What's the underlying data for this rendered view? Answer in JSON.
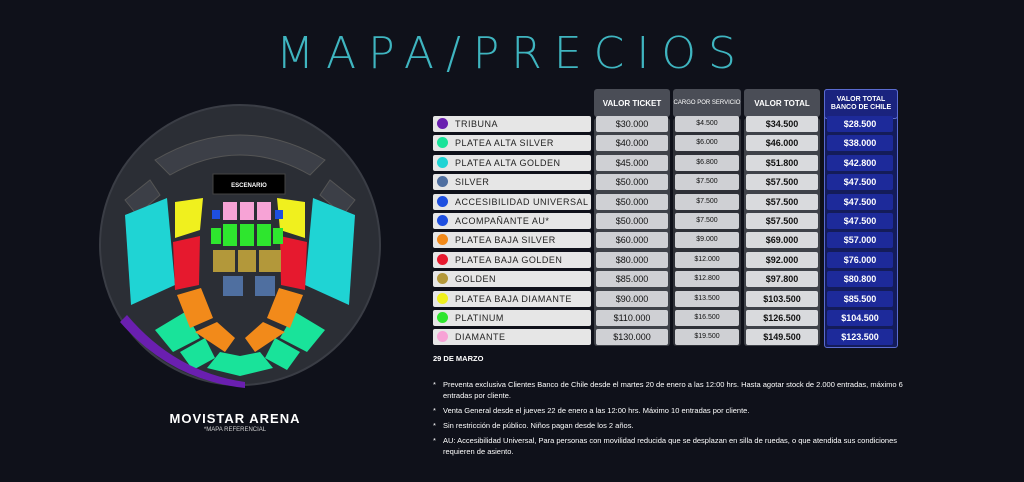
{
  "page": {
    "title": "MAPA/PRECIOS"
  },
  "map": {
    "stage_label": "ESCENARIO",
    "venue_name": "MOVISTAR ARENA",
    "venue_note": "*MAPA REFERENCIAL"
  },
  "table": {
    "headers": {
      "ticket": "VALOR TICKET",
      "cargo": "CARGO POR SERVICIO",
      "total": "VALOR TOTAL",
      "bank": "VALOR TOTAL BANCO DE CHILE"
    },
    "rows": [
      {
        "zone": "TRIBUNA",
        "color": "#6a1fb0",
        "ticket": "$30.000",
        "cargo": "$4.500",
        "total": "$34.500",
        "bank": "$28.500"
      },
      {
        "zone": "PLATEA ALTA SILVER",
        "color": "#19e39a",
        "ticket": "$40.000",
        "cargo": "$6.000",
        "total": "$46.000",
        "bank": "$38.000"
      },
      {
        "zone": "PLATEA ALTA GOLDEN",
        "color": "#1fd4d4",
        "ticket": "$45.000",
        "cargo": "$6.800",
        "total": "$51.800",
        "bank": "$42.800"
      },
      {
        "zone": "SILVER",
        "color": "#4f6fa0",
        "ticket": "$50.000",
        "cargo": "$7.500",
        "total": "$57.500",
        "bank": "$47.500"
      },
      {
        "zone": "ACCESIBILIDAD UNIVERSAL",
        "color": "#1e4fe0",
        "ticket": "$50.000",
        "cargo": "$7.500",
        "total": "$57.500",
        "bank": "$47.500"
      },
      {
        "zone": "ACOMPAÑANTE AU*",
        "color": "#1e4fe0",
        "ticket": "$50.000",
        "cargo": "$7.500",
        "total": "$57.500",
        "bank": "$47.500"
      },
      {
        "zone": "PLATEA BAJA SILVER",
        "color": "#f28a1a",
        "ticket": "$60.000",
        "cargo": "$9.000",
        "total": "$69.000",
        "bank": "$57.000"
      },
      {
        "zone": "PLATEA BAJA GOLDEN",
        "color": "#e6192e",
        "ticket": "$80.000",
        "cargo": "$12.000",
        "total": "$92.000",
        "bank": "$76.000"
      },
      {
        "zone": "GOLDEN",
        "color": "#b3983a",
        "ticket": "$85.000",
        "cargo": "$12.800",
        "total": "$97.800",
        "bank": "$80.800"
      },
      {
        "zone": "PLATEA BAJA DIAMANTE",
        "color": "#f0f01e",
        "ticket": "$90.000",
        "cargo": "$13.500",
        "total": "$103.500",
        "bank": "$85.500"
      },
      {
        "zone": "PLATINUM",
        "color": "#2ee62e",
        "ticket": "$110.000",
        "cargo": "$16.500",
        "total": "$126.500",
        "bank": "$104.500"
      },
      {
        "zone": "DIAMANTE",
        "color": "#f7a3d6",
        "ticket": "$130.000",
        "cargo": "$19.500",
        "total": "$149.500",
        "bank": "$123.500"
      }
    ]
  },
  "info": {
    "date": "29 DE MARZO",
    "notes": [
      "Preventa exclusiva Clientes Banco de Chile desde el martes 20 de enero a las 12:00 hrs. Hasta agotar stock de 2.000 entradas, máximo 6 entradas por cliente.",
      "Venta General desde el jueves 22 de enero a las 12:00 hrs. Máximo 10 entradas por cliente.",
      "Sin restricción de público. Niños pagan desde los 2 años.",
      "AU: Accesibilidad Universal, Para personas con movilidad reducida que se desplazan en silla de ruedas, o que atendida sus condiciones requieren de asiento."
    ]
  }
}
